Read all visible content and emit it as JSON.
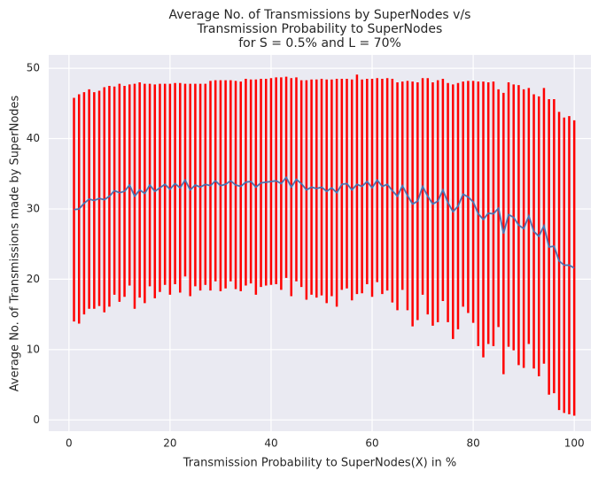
{
  "chart_data": {
    "type": "errorbar_line",
    "title": [
      "Average No. of Transmissions by SuperNodes v/s",
      "Transmission Probability to SuperNodes",
      "for S = 0.5% and L = 70%"
    ],
    "x_label": "Transmission Probability to SuperNodes(X) in %",
    "y_label": "Average No. of Transmissions made by SuperNodes",
    "x": [
      1,
      2,
      3,
      4,
      5,
      6,
      7,
      8,
      9,
      10,
      11,
      12,
      13,
      14,
      15,
      16,
      17,
      18,
      19,
      20,
      21,
      22,
      23,
      24,
      25,
      26,
      27,
      28,
      29,
      30,
      31,
      32,
      33,
      34,
      35,
      36,
      37,
      38,
      39,
      40,
      41,
      42,
      43,
      44,
      45,
      46,
      47,
      48,
      49,
      50,
      51,
      52,
      53,
      54,
      55,
      56,
      57,
      58,
      59,
      60,
      61,
      62,
      63,
      64,
      65,
      66,
      67,
      68,
      69,
      70,
      71,
      72,
      73,
      74,
      75,
      76,
      77,
      78,
      79,
      80,
      81,
      82,
      83,
      84,
      85,
      86,
      87,
      88,
      89,
      90,
      91,
      92,
      93,
      94,
      95,
      96,
      97,
      98,
      99,
      100
    ],
    "values": [
      29.9,
      30.0,
      30.8,
      31.4,
      31.2,
      31.5,
      31.3,
      31.8,
      32.6,
      32.3,
      32.5,
      33.4,
      31.8,
      32.7,
      32.2,
      33.4,
      32.5,
      33.0,
      33.5,
      32.8,
      33.6,
      33.0,
      34.1,
      32.7,
      33.4,
      33.1,
      33.5,
      33.3,
      34.0,
      33.3,
      33.5,
      34.0,
      33.4,
      33.2,
      33.8,
      33.9,
      33.1,
      33.7,
      33.8,
      33.9,
      34.0,
      33.6,
      34.5,
      33.1,
      34.2,
      33.6,
      32.7,
      33.1,
      32.9,
      33.1,
      32.5,
      33.0,
      32.3,
      33.5,
      33.6,
      32.7,
      33.5,
      33.2,
      33.9,
      33.0,
      34.1,
      33.2,
      33.5,
      32.6,
      31.8,
      33.3,
      31.9,
      30.7,
      31.1,
      33.2,
      31.8,
      30.7,
      31.1,
      32.7,
      30.9,
      29.6,
      30.4,
      32.1,
      31.7,
      31.0,
      29.3,
      28.5,
      29.4,
      29.3,
      30.1,
      26.5,
      29.2,
      28.8,
      27.7,
      27.2,
      29.0,
      26.8,
      26.1,
      27.6,
      24.6,
      24.7,
      22.6,
      22.0,
      22.0,
      21.6
    ],
    "errors": [
      15.9,
      16.3,
      15.8,
      15.6,
      15.4,
      15.3,
      16.0,
      15.7,
      14.8,
      15.5,
      15.0,
      14.3,
      16.0,
      15.3,
      15.6,
      14.4,
      15.2,
      14.8,
      14.3,
      15.0,
      14.3,
      14.9,
      13.7,
      15.1,
      14.4,
      14.7,
      14.3,
      14.9,
      14.3,
      15.0,
      14.8,
      14.3,
      14.8,
      14.9,
      14.7,
      14.5,
      15.3,
      14.8,
      14.7,
      14.7,
      14.7,
      15.1,
      14.3,
      15.5,
      14.5,
      14.7,
      15.6,
      15.3,
      15.5,
      15.4,
      15.9,
      15.4,
      16.2,
      15.0,
      14.9,
      15.7,
      15.6,
      15.2,
      14.6,
      15.5,
      14.5,
      15.3,
      15.1,
      15.9,
      16.2,
      14.8,
      16.3,
      17.4,
      16.9,
      15.4,
      16.8,
      17.3,
      17.2,
      15.8,
      17.0,
      18.1,
      17.5,
      16.0,
      16.5,
      17.2,
      18.8,
      19.6,
      18.6,
      18.8,
      16.9,
      20.0,
      18.8,
      18.9,
      19.9,
      19.8,
      18.2,
      19.5,
      19.9,
      19.6,
      21.0,
      20.9,
      21.2,
      21.0,
      21.2,
      21.0
    ],
    "color": "#4c72b0",
    "error_color": "#ff0000",
    "background": "#eaeaf2",
    "xlim": [
      -4,
      103.3
    ],
    "ylim": [
      -1.6,
      51.9
    ],
    "xticks": [
      0,
      20,
      40,
      60,
      80,
      100
    ],
    "yticks": [
      0,
      10,
      20,
      30,
      40,
      50
    ],
    "grid": true
  }
}
